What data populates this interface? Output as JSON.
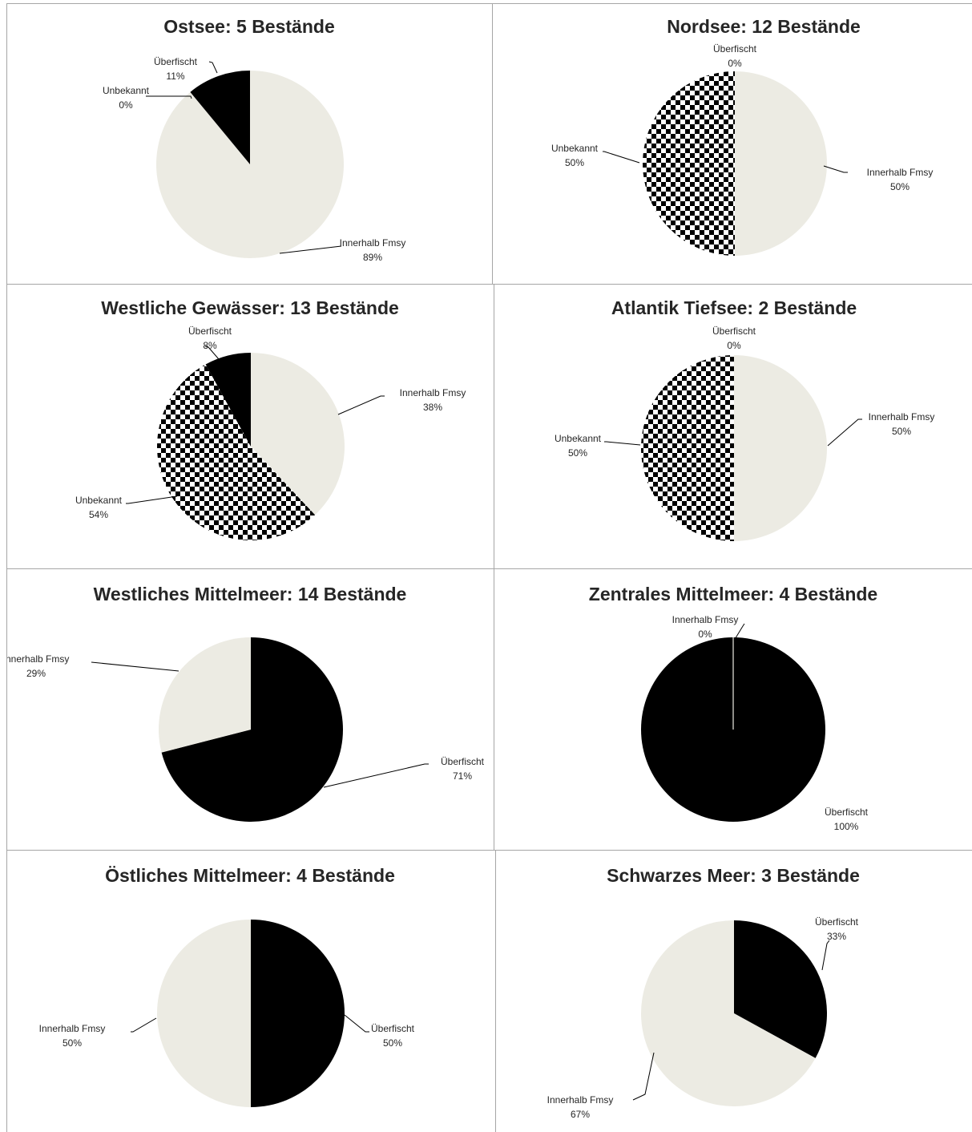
{
  "colors": {
    "innerhalb": "#ecebe3",
    "ueberfischt": "#000000",
    "unbekannt": "checkerboard-black-white",
    "grid": "#a6a6a6",
    "text": "#262626"
  },
  "chart_data": [
    {
      "type": "pie",
      "title": "Ostsee: 5 Bestände",
      "slices": [
        {
          "label": "Innerhalb Fmsy",
          "value": 89,
          "pct": "89%",
          "pattern": "light"
        },
        {
          "label": "Unbekannt",
          "value": 0,
          "pct": "0%",
          "pattern": "checker"
        },
        {
          "label": "Überfischt",
          "value": 11,
          "pct": "11%",
          "pattern": "black"
        }
      ]
    },
    {
      "type": "pie",
      "title": "Nordsee: 12 Bestände",
      "slices": [
        {
          "label": "Innerhalb Fmsy",
          "value": 50,
          "pct": "50%",
          "pattern": "light"
        },
        {
          "label": "Unbekannt",
          "value": 50,
          "pct": "50%",
          "pattern": "checker"
        },
        {
          "label": "Überfischt",
          "value": 0,
          "pct": "0%",
          "pattern": "black"
        }
      ]
    },
    {
      "type": "pie",
      "title": "Westliche Gewässer: 13 Bestände",
      "slices": [
        {
          "label": "Innerhalb Fmsy",
          "value": 38,
          "pct": "38%",
          "pattern": "light"
        },
        {
          "label": "Unbekannt",
          "value": 54,
          "pct": "54%",
          "pattern": "checker"
        },
        {
          "label": "Überfischt",
          "value": 8,
          "pct": "8%",
          "pattern": "black"
        }
      ]
    },
    {
      "type": "pie",
      "title": "Atlantik Tiefsee: 2 Bestände",
      "slices": [
        {
          "label": "Innerhalb Fmsy",
          "value": 50,
          "pct": "50%",
          "pattern": "light"
        },
        {
          "label": "Unbekannt",
          "value": 50,
          "pct": "50%",
          "pattern": "checker"
        },
        {
          "label": "Überfischt",
          "value": 0,
          "pct": "0%",
          "pattern": "black"
        }
      ]
    },
    {
      "type": "pie",
      "title": "Westliches Mittelmeer: 14 Bestände",
      "slices": [
        {
          "label": "Überfischt",
          "value": 71,
          "pct": "71%",
          "pattern": "black"
        },
        {
          "label": "Innerhalb Fmsy",
          "value": 29,
          "pct": "29%",
          "pattern": "light"
        }
      ]
    },
    {
      "type": "pie",
      "title": "Zentrales Mittelmeer:  4 Bestände",
      "slices": [
        {
          "label": "Innerhalb Fmsy",
          "value": 0,
          "pct": "0%",
          "pattern": "light"
        },
        {
          "label": "Überfischt",
          "value": 100,
          "pct": "100%",
          "pattern": "black"
        }
      ]
    },
    {
      "type": "pie",
      "title": "Östliches Mittelmeer: 4 Bestände",
      "slices": [
        {
          "label": "Überfischt",
          "value": 50,
          "pct": "50%",
          "pattern": "black"
        },
        {
          "label": "Innerhalb Fmsy",
          "value": 50,
          "pct": "50%",
          "pattern": "light"
        }
      ]
    },
    {
      "type": "pie",
      "title": "Schwarzes Meer: 3 Bestände",
      "slices": [
        {
          "label": "Überfischt",
          "value": 33,
          "pct": "33%",
          "pattern": "black"
        },
        {
          "label": "Innerhalb Fmsy",
          "value": 67,
          "pct": "67%",
          "pattern": "light"
        }
      ]
    }
  ]
}
